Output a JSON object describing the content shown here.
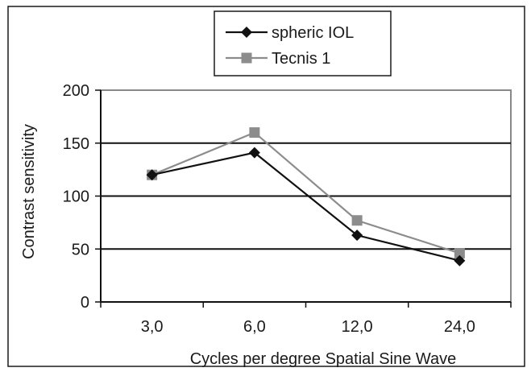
{
  "chart_data": {
    "type": "line",
    "title": "",
    "categories": [
      "3,0",
      "6,0",
      "12,0",
      "24,0"
    ],
    "xlabel": "Cycles per degree Spatial Sine Wave",
    "ylabel": "Contrast sensitivity",
    "ylim": [
      0,
      200
    ],
    "yticks": [
      0,
      50,
      100,
      150,
      200
    ],
    "grid": true,
    "legend_position": "top-center",
    "series": [
      {
        "name": "spheric IOL",
        "values": [
          120,
          141,
          63,
          39
        ],
        "color": "#111111",
        "marker": "diamond"
      },
      {
        "name": "Tecnis 1",
        "values": [
          120,
          160,
          77,
          46
        ],
        "color": "#8c8c8c",
        "marker": "square"
      }
    ]
  }
}
